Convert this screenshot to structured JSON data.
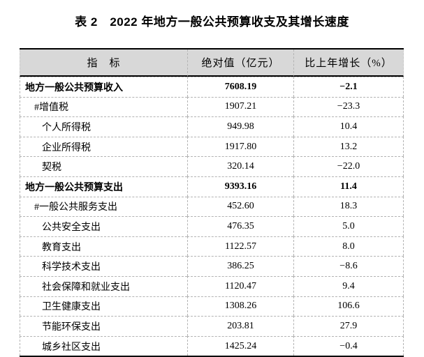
{
  "page": {
    "background": "#ffffff",
    "header_bg": "#d8d8d8",
    "rule_color": "#000000",
    "grid_color": "#b3b3b3"
  },
  "title": "表 2　2022 年地方一般公共预算收支及其增长速度",
  "table": {
    "columns": [
      "指　标",
      "绝对值（亿元）",
      "比上年增长（%）"
    ],
    "rows": [
      {
        "label": "地方一般公共预算收入",
        "value": "7608.19",
        "growth": "−2.1",
        "bold": true,
        "indent": 0
      },
      {
        "label": "#增值税",
        "value": "1907.21",
        "growth": "−23.3",
        "bold": false,
        "indent": 1
      },
      {
        "label": "个人所得税",
        "value": "949.98",
        "growth": "10.4",
        "bold": false,
        "indent": 2
      },
      {
        "label": "企业所得税",
        "value": "1917.80",
        "growth": "13.2",
        "bold": false,
        "indent": 2
      },
      {
        "label": "契税",
        "value": "320.14",
        "growth": "−22.0",
        "bold": false,
        "indent": 2
      },
      {
        "label": "地方一般公共预算支出",
        "value": "9393.16",
        "growth": "11.4",
        "bold": true,
        "indent": 0
      },
      {
        "label": "#一般公共服务支出",
        "value": "452.60",
        "growth": "18.3",
        "bold": false,
        "indent": 1
      },
      {
        "label": "公共安全支出",
        "value": "476.35",
        "growth": "5.0",
        "bold": false,
        "indent": 2
      },
      {
        "label": "教育支出",
        "value": "1122.57",
        "growth": "8.0",
        "bold": false,
        "indent": 2
      },
      {
        "label": "科学技术支出",
        "value": "386.25",
        "growth": "−8.6",
        "bold": false,
        "indent": 2
      },
      {
        "label": "社会保障和就业支出",
        "value": "1120.47",
        "growth": "9.4",
        "bold": false,
        "indent": 2
      },
      {
        "label": "卫生健康支出",
        "value": "1308.26",
        "growth": "106.6",
        "bold": false,
        "indent": 2
      },
      {
        "label": "节能环保支出",
        "value": "203.81",
        "growth": "27.9",
        "bold": false,
        "indent": 2
      },
      {
        "label": "城乡社区支出",
        "value": "1425.24",
        "growth": "−0.4",
        "bold": false,
        "indent": 2
      }
    ]
  }
}
